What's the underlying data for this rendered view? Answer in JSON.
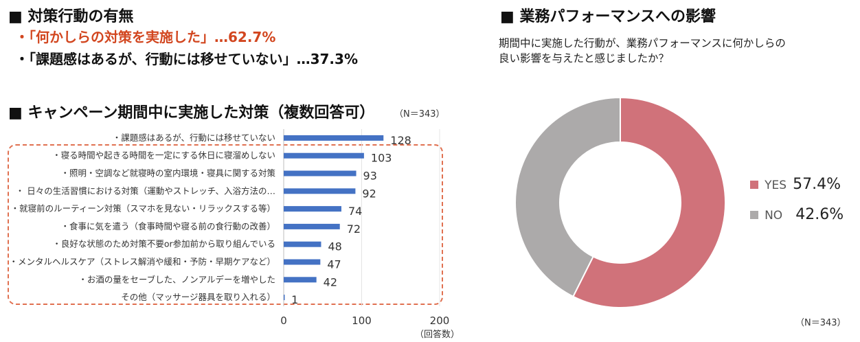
{
  "left": {
    "heading": "■ 対策行動の有無",
    "summary": [
      "・「何かしらの対策を実施した」…62.7%",
      "・「課題感はあるが、行動には移せていない」…37.3%"
    ],
    "chart_heading": "■ キャンペーン期間中に実施した対策（複数回答可）",
    "n_label": "（N＝343）",
    "unit_label": "（回答数）"
  },
  "right": {
    "heading": "■ 業務パフォーマンスへの影響",
    "question_line1": "期間中に実施した行動が、業務パフォーマンスに何かしらの",
    "question_line2": "良い影響を与えたと感じましたか？",
    "n_label": "（N＝343）"
  },
  "colors": {
    "bar": "#4472c4",
    "yes": "#d0727a",
    "no": "#acaaaa",
    "accent": "#d2461f",
    "dashed_box": "#e07050"
  },
  "chart_data": [
    {
      "type": "bar",
      "orientation": "horizontal",
      "title": "キャンペーン期間中に実施した対策（複数回答可）",
      "xlabel": "（回答数）",
      "xlim": [
        0,
        200
      ],
      "xticks": [
        0,
        100,
        200
      ],
      "categories": [
        "・課題感はあるが、行動には移せていない",
        "・寝る時間や起きる時間を一定にする休日に寝溜めしない",
        "・照明・空調など就寝時の室内環境・寝具に関する対策",
        "・ 日々の生活習慣における対策（運動やストレッチ、入浴方法の…",
        "・就寝前のルーティーン対策（スマホを見ない・リラックスする等）",
        "・食事に気を遣う（食事時間や寝る前の食行動の改善）",
        "・良好な状態のため対策不要or参加前から取り組んでいる",
        "・メンタルヘルスケア（ストレス解消や緩和・予防・早期ケアなど）",
        "・お酒の量をセーブした、ノンアルデーを増やした",
        "その他（マッサージ器具を取り入れる）"
      ],
      "values": [
        128,
        103,
        93,
        92,
        74,
        72,
        48,
        47,
        42,
        1
      ]
    },
    {
      "type": "pie",
      "donut": true,
      "title": "業務パフォーマンスへの影響",
      "labels": [
        "YES",
        "NO"
      ],
      "values": [
        57.4,
        42.6
      ],
      "value_labels": [
        "57.4%",
        "42.6%"
      ]
    }
  ]
}
